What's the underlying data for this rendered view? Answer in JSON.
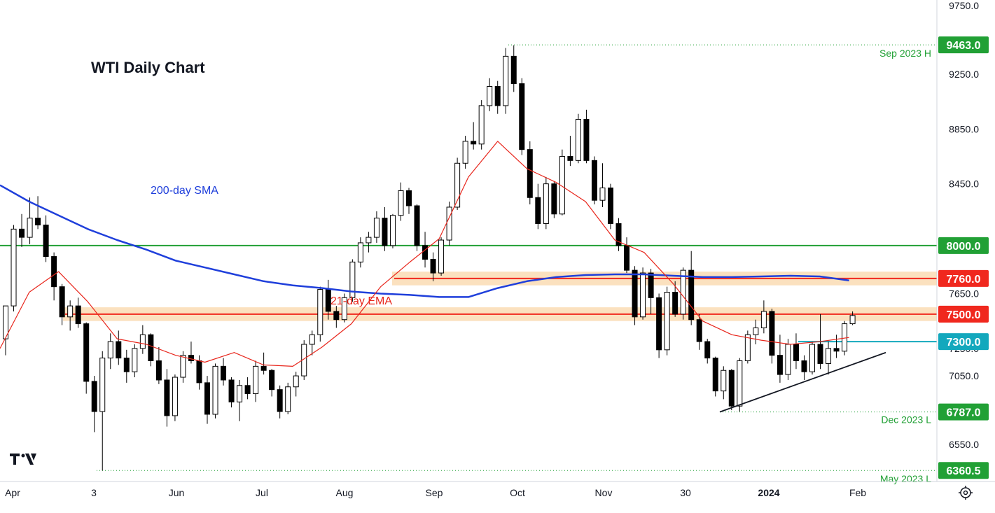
{
  "chart_data": {
    "type": "candlestick",
    "title": "WTI Daily Chart",
    "ylim": [
      6280,
      9790
    ],
    "y_ticks": [
      {
        "value": 9750,
        "label": "9750.0"
      },
      {
        "value": 9250,
        "label": "9250.0"
      },
      {
        "value": 8850,
        "label": "8850.0"
      },
      {
        "value": 8450,
        "label": "8450.0"
      },
      {
        "value": 7650,
        "label": "7650.0"
      },
      {
        "value": 7250,
        "label": "7250.0"
      },
      {
        "value": 7050,
        "label": "7050.0"
      },
      {
        "value": 6787,
        "label": "6787.0"
      },
      {
        "value": 6550,
        "label": "6550.0"
      }
    ],
    "x_labels": [
      {
        "label": "Apr",
        "bold": false
      },
      {
        "label": "3",
        "bold": false
      },
      {
        "label": "Jun",
        "bold": false
      },
      {
        "label": "Jul",
        "bold": false
      },
      {
        "label": "Aug",
        "bold": false
      },
      {
        "label": "Sep",
        "bold": false
      },
      {
        "label": "Oct",
        "bold": false
      },
      {
        "label": "Nov",
        "bold": false
      },
      {
        "label": "30",
        "bold": false
      },
      {
        "label": "2024",
        "bold": true
      },
      {
        "label": "Feb",
        "bold": false
      }
    ],
    "price_badges": [
      {
        "value": 9463.0,
        "label": "9463.0",
        "color": "#21a035"
      },
      {
        "value": 8000.0,
        "label": "8000.0",
        "color": "#21a035"
      },
      {
        "value": 7760.0,
        "label": "7760.0",
        "color": "#f0281e"
      },
      {
        "value": 7500.0,
        "label": "7500.0",
        "color": "#f0281e"
      },
      {
        "value": 7300.0,
        "label": "7300.0",
        "color": "#13a8bd"
      },
      {
        "value": 6787.0,
        "label": "6787.0",
        "color": "#21a035"
      },
      {
        "value": 6360.5,
        "label": "6360.5",
        "color": "#21a035"
      }
    ],
    "annotations": [
      {
        "text": "Sep 2023 H",
        "value": 9463.0,
        "color": "#21a035"
      },
      {
        "text": "Dec 2023 L",
        "value": 6787.0,
        "color": "#21a035"
      },
      {
        "text": "May 2023 L",
        "value": 6360.5,
        "color": "#21a035"
      },
      {
        "text": "200-day SMA",
        "color": "#1f3fdb"
      },
      {
        "text": "21-day EMA",
        "color": "#e8261c"
      }
    ],
    "horizontal_lines": [
      {
        "value": 8000,
        "color": "#21a035"
      },
      {
        "value": 7760,
        "color": "#f0281e",
        "zone": [
          7710,
          7810
        ]
      },
      {
        "value": 7500,
        "color": "#f0281e",
        "zone": [
          7450,
          7550
        ]
      },
      {
        "value": 7300,
        "color": "#13a8bd"
      }
    ],
    "trendline": {
      "from": {
        "date": "Dec 2023 L",
        "value": 6787
      },
      "to": {
        "value": 7220
      },
      "color": "#131722"
    },
    "series": [
      {
        "name": "200-day SMA",
        "color": "#1f3fdb",
        "values": [
          8440,
          8320,
          8220,
          8120,
          8040,
          7970,
          7890,
          7840,
          7790,
          7740,
          7710,
          7690,
          7665,
          7650,
          7640,
          7625,
          7625,
          7690,
          7740,
          7770,
          7785,
          7790,
          7790,
          7780,
          7770,
          7770,
          7775,
          7780,
          7775,
          7745
        ]
      },
      {
        "name": "21-day EMA",
        "color": "#e8261c",
        "values": [
          7250,
          7660,
          7810,
          7590,
          7320,
          7280,
          7200,
          7150,
          7220,
          7130,
          7120,
          7260,
          7430,
          7700,
          7880,
          8050,
          8500,
          8760,
          8560,
          8460,
          8320,
          8040,
          7950,
          7720,
          7450,
          7350,
          7310,
          7280,
          7300,
          7330
        ]
      }
    ],
    "candles": [
      [
        7320,
        7560,
        7200,
        7560
      ],
      [
        7560,
        8150,
        7520,
        8120
      ],
      [
        8120,
        8230,
        7990,
        8060
      ],
      [
        8060,
        8350,
        8010,
        8200
      ],
      [
        8200,
        8360,
        8120,
        8150
      ],
      [
        8150,
        8220,
        7880,
        7920
      ],
      [
        7920,
        7950,
        7600,
        7700
      ],
      [
        7700,
        7720,
        7420,
        7480
      ],
      [
        7480,
        7600,
        7380,
        7560
      ],
      [
        7560,
        7620,
        7400,
        7430
      ],
      [
        7430,
        7440,
        6920,
        7010
      ],
      [
        7010,
        7050,
        6640,
        6790
      ],
      [
        6790,
        7230,
        6360,
        7180
      ],
      [
        7180,
        7360,
        7100,
        7300
      ],
      [
        7300,
        7380,
        7130,
        7180
      ],
      [
        7180,
        7240,
        7000,
        7080
      ],
      [
        7080,
        7280,
        7040,
        7250
      ],
      [
        7250,
        7420,
        7210,
        7350
      ],
      [
        7350,
        7360,
        7120,
        7160
      ],
      [
        7160,
        7260,
        6990,
        7020
      ],
      [
        7020,
        7100,
        6680,
        6760
      ],
      [
        6760,
        7060,
        6720,
        7040
      ],
      [
        7040,
        7230,
        7000,
        7200
      ],
      [
        7200,
        7300,
        7140,
        7160
      ],
      [
        7160,
        7200,
        6950,
        7000
      ],
      [
        7000,
        7050,
        6700,
        6770
      ],
      [
        6770,
        7140,
        6740,
        7120
      ],
      [
        7120,
        7180,
        6980,
        7020
      ],
      [
        7020,
        7040,
        6820,
        6860
      ],
      [
        6860,
        7020,
        6720,
        6980
      ],
      [
        6980,
        7040,
        6880,
        6920
      ],
      [
        6920,
        7160,
        6860,
        7120
      ],
      [
        7120,
        7220,
        7060,
        7090
      ],
      [
        7090,
        7100,
        6900,
        6950
      ],
      [
        6950,
        6980,
        6740,
        6790
      ],
      [
        6790,
        7000,
        6770,
        6970
      ],
      [
        6970,
        7080,
        6900,
        7050
      ],
      [
        7050,
        7310,
        7020,
        7280
      ],
      [
        7280,
        7380,
        7200,
        7350
      ],
      [
        7350,
        7700,
        7300,
        7680
      ],
      [
        7680,
        7750,
        7460,
        7520
      ],
      [
        7520,
        7560,
        7400,
        7460
      ],
      [
        7460,
        7650,
        7440,
        7620
      ],
      [
        7620,
        7900,
        7590,
        7880
      ],
      [
        7880,
        8060,
        7840,
        8020
      ],
      [
        8020,
        8100,
        7950,
        8060
      ],
      [
        8060,
        8250,
        8020,
        8200
      ],
      [
        8200,
        8280,
        7960,
        8000
      ],
      [
        8000,
        8230,
        7980,
        8220
      ],
      [
        8220,
        8460,
        8180,
        8400
      ],
      [
        8400,
        8420,
        8230,
        8290
      ],
      [
        8290,
        8300,
        7960,
        8000
      ],
      [
        8000,
        8100,
        7840,
        7900
      ],
      [
        7900,
        7950,
        7740,
        7800
      ],
      [
        7800,
        8060,
        7780,
        8040
      ],
      [
        8040,
        8320,
        8000,
        8280
      ],
      [
        8280,
        8640,
        8260,
        8600
      ],
      [
        8600,
        8800,
        8560,
        8760
      ],
      [
        8760,
        8900,
        8700,
        8740
      ],
      [
        8740,
        9060,
        8700,
        9020
      ],
      [
        9020,
        9220,
        8980,
        9160
      ],
      [
        9160,
        9200,
        8960,
        9020
      ],
      [
        9020,
        9440,
        8960,
        9380
      ],
      [
        9380,
        9460,
        9120,
        9180
      ],
      [
        9180,
        9220,
        8660,
        8700
      ],
      [
        8700,
        8760,
        8300,
        8350
      ],
      [
        8350,
        8450,
        8120,
        8160
      ],
      [
        8160,
        8500,
        8120,
        8450
      ],
      [
        8450,
        8470,
        8200,
        8230
      ],
      [
        8230,
        8700,
        8220,
        8650
      ],
      [
        8650,
        8800,
        8580,
        8620
      ],
      [
        8620,
        8960,
        8600,
        8920
      ],
      [
        8920,
        8990,
        8600,
        8620
      ],
      [
        8620,
        8650,
        8300,
        8330
      ],
      [
        8330,
        8600,
        8280,
        8420
      ],
      [
        8420,
        8450,
        8120,
        8160
      ],
      [
        8160,
        8200,
        7960,
        8000
      ],
      [
        8000,
        8060,
        7800,
        7820
      ],
      [
        7820,
        7850,
        7420,
        7480
      ],
      [
        7480,
        7840,
        7460,
        7800
      ],
      [
        7800,
        7830,
        7500,
        7620
      ],
      [
        7620,
        7650,
        7180,
        7240
      ],
      [
        7240,
        7700,
        7200,
        7660
      ],
      [
        7660,
        7740,
        7480,
        7500
      ],
      [
        7500,
        7840,
        7460,
        7820
      ],
      [
        7820,
        7960,
        7420,
        7460
      ],
      [
        7460,
        7500,
        7240,
        7300
      ],
      [
        7300,
        7320,
        7140,
        7180
      ],
      [
        7180,
        7190,
        6900,
        6940
      ],
      [
        6940,
        7120,
        6880,
        7090
      ],
      [
        7090,
        7100,
        6800,
        6830
      ],
      [
        6830,
        7180,
        6790,
        7160
      ],
      [
        7160,
        7380,
        7140,
        7350
      ],
      [
        7350,
        7460,
        7280,
        7400
      ],
      [
        7400,
        7600,
        7360,
        7520
      ],
      [
        7520,
        7540,
        7140,
        7200
      ],
      [
        7200,
        7350,
        7000,
        7060
      ],
      [
        7060,
        7320,
        7020,
        7280
      ],
      [
        7280,
        7360,
        7100,
        7160
      ],
      [
        7160,
        7200,
        7020,
        7080
      ],
      [
        7080,
        7300,
        7060,
        7280
      ],
      [
        7280,
        7500,
        7100,
        7140
      ],
      [
        7140,
        7300,
        7060,
        7250
      ],
      [
        7250,
        7350,
        7180,
        7230
      ],
      [
        7230,
        7450,
        7200,
        7430
      ],
      [
        7430,
        7520,
        7420,
        7490
      ]
    ]
  },
  "ui": {
    "logo_text": "TV",
    "settings_icon": "gear-icon"
  }
}
